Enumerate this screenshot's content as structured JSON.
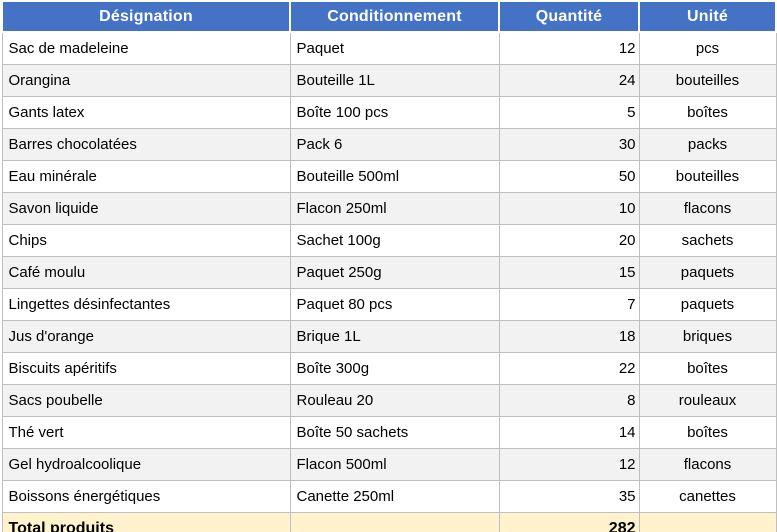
{
  "colors": {
    "header_bg": "#4472C4",
    "header_text": "#FFFFFF",
    "row_alt_bg": "#F2F2F2",
    "total_bg": "#FFF2CC",
    "gridline": "#BFBFBF",
    "bottom_border": "#808080"
  },
  "table": {
    "columns": [
      {
        "label": "Désignation",
        "align": "left"
      },
      {
        "label": "Conditionnement",
        "align": "left"
      },
      {
        "label": "Quantité",
        "align": "right"
      },
      {
        "label": "Unité",
        "align": "center"
      }
    ],
    "rows": [
      [
        "Sac de madeleine",
        "Paquet",
        "12",
        "pcs"
      ],
      [
        "Orangina",
        "Bouteille 1L",
        "24",
        "bouteilles"
      ],
      [
        "Gants latex",
        "Boîte 100 pcs",
        "5",
        "boîtes"
      ],
      [
        "Barres chocolatées",
        "Pack 6",
        "30",
        "packs"
      ],
      [
        "Eau minérale",
        "Bouteille 500ml",
        "50",
        "bouteilles"
      ],
      [
        "Savon liquide",
        "Flacon 250ml",
        "10",
        "flacons"
      ],
      [
        "Chips",
        "Sachet 100g",
        "20",
        "sachets"
      ],
      [
        "Café moulu",
        "Paquet 250g",
        "15",
        "paquets"
      ],
      [
        "Lingettes désinfectantes",
        "Paquet 80 pcs",
        "7",
        "paquets"
      ],
      [
        "Jus d'orange",
        "Brique 1L",
        "18",
        "briques"
      ],
      [
        "Biscuits apéritifs",
        "Boîte 300g",
        "22",
        "boîtes"
      ],
      [
        "Sacs poubelle",
        "Rouleau 20",
        "8",
        "rouleaux"
      ],
      [
        "Thé vert",
        "Boîte 50 sachets",
        "14",
        "boîtes"
      ],
      [
        "Gel hydroalcoolique",
        "Flacon 500ml",
        "12",
        "flacons"
      ],
      [
        "Boissons énergétiques",
        "Canette 250ml",
        "35",
        "canettes"
      ]
    ],
    "total_row": {
      "label": "Total produits",
      "conditionnement": "",
      "quantity": "282",
      "unit": ""
    }
  }
}
